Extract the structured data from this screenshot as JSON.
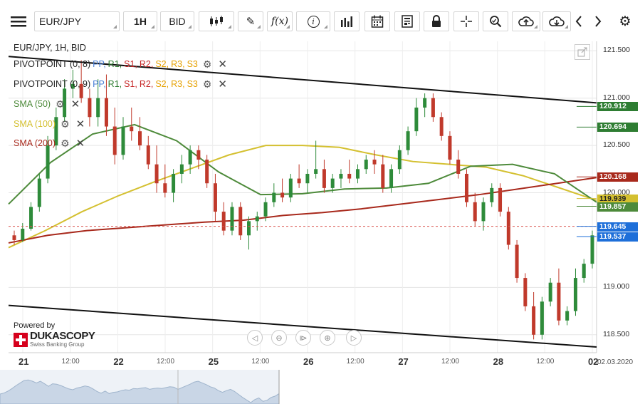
{
  "toolbar": {
    "symbol": "EUR/JPY",
    "timeframe": "1H",
    "price_type": "BID",
    "fx_label": "f(x)"
  },
  "chart_header": "EUR/JPY, 1H, BID",
  "indicators": {
    "pivot1_name": "PIVOTPOINT (0, 8)",
    "pivot2_name": "PIVOTPOINT (0, 9)",
    "levels": [
      "PP,",
      "R1,",
      "S1,",
      "R2,",
      "S2,",
      "R3,",
      "S3"
    ],
    "level_colors": [
      "#4a7fd6",
      "#2e7d32",
      "#c62828",
      "#c62828",
      "#e6a100",
      "#e6a100",
      "#e6a100"
    ],
    "sma50": "SMA (50)",
    "sma100": "SMA (100)",
    "sma200": "SMA (200)",
    "sma50_color": "#4d8a3a",
    "sma100_color": "#d4c030",
    "sma200_color": "#a8291c"
  },
  "branding": {
    "powered_by": "Powered by",
    "name": "DUKASCOPY",
    "tagline": "Swiss Banking Group"
  },
  "footer_date": "02.03.2020",
  "chart_data": {
    "type": "candlestick",
    "title": "EUR/JPY, 1H, BID",
    "ylim": [
      118.31,
      121.6
    ],
    "y_ticks": [
      "121.500",
      "121.000",
      "120.500",
      "120.000",
      "119.000",
      "118.500"
    ],
    "x_labels": [
      "21",
      "12:00",
      "22",
      "12:00",
      "25",
      "12:00",
      "26",
      "12:00",
      "27",
      "12:00",
      "28",
      "12:00",
      "02"
    ],
    "price_labels": [
      {
        "value": "120.912",
        "color": "#2e7d32"
      },
      {
        "value": "120.694",
        "color": "#2e7d32"
      },
      {
        "value": "120.168",
        "color": "#a8291c"
      },
      {
        "value": "119.939",
        "color": "#d4c030"
      },
      {
        "value": "119.857",
        "color": "#4d8a3a"
      },
      {
        "value": "119.645",
        "color": "#1e6fd9"
      },
      {
        "value": "119.537",
        "color": "#1e6fd9"
      }
    ],
    "channel_upper": [
      [
        0,
        121.44
      ],
      [
        1,
        120.95
      ]
    ],
    "channel_lower": [
      [
        0,
        118.81
      ],
      [
        1,
        118.37
      ]
    ],
    "sma200": [
      119.47,
      119.55,
      119.6,
      119.63,
      119.66,
      119.69,
      119.71,
      119.76,
      119.79,
      119.83,
      119.88,
      119.93,
      119.98,
      120.04,
      120.1,
      120.16
    ],
    "sma100": [
      119.42,
      119.6,
      119.8,
      119.97,
      120.12,
      120.26,
      120.4,
      120.5,
      120.5,
      120.48,
      120.4,
      120.33,
      120.3,
      120.27,
      120.18,
      120.05,
      119.92
    ],
    "sma50": [
      119.88,
      120.32,
      120.62,
      120.72,
      120.55,
      120.22,
      119.98,
      119.99,
      120.04,
      120.05,
      120.1,
      120.28,
      120.3,
      120.2,
      119.9
    ],
    "candles": [
      [
        119.55,
        119.6,
        119.45,
        119.5
      ],
      [
        119.5,
        119.68,
        119.48,
        119.62
      ],
      [
        119.62,
        119.9,
        119.6,
        119.85
      ],
      [
        119.85,
        120.2,
        119.8,
        120.15
      ],
      [
        120.15,
        120.6,
        120.1,
        120.5
      ],
      [
        120.5,
        120.9,
        120.45,
        120.8
      ],
      [
        120.8,
        121.2,
        120.75,
        121.1
      ],
      [
        121.1,
        121.3,
        121.0,
        121.15
      ],
      [
        121.15,
        121.4,
        120.95,
        121.0
      ],
      [
        121.0,
        121.1,
        120.7,
        120.8
      ],
      [
        120.8,
        121.2,
        120.7,
        121.0
      ],
      [
        121.0,
        121.25,
        120.6,
        120.7
      ],
      [
        120.7,
        120.9,
        120.3,
        120.4
      ],
      [
        120.4,
        120.8,
        120.35,
        120.7
      ],
      [
        120.7,
        120.9,
        120.55,
        120.65
      ],
      [
        120.65,
        120.8,
        120.45,
        120.5
      ],
      [
        120.5,
        120.6,
        120.25,
        120.3
      ],
      [
        120.3,
        120.5,
        120.0,
        120.1
      ],
      [
        120.1,
        120.3,
        119.95,
        120.0
      ],
      [
        120.0,
        120.25,
        119.9,
        120.2
      ],
      [
        120.2,
        120.4,
        120.1,
        120.3
      ],
      [
        120.3,
        120.5,
        120.2,
        120.45
      ],
      [
        120.45,
        120.5,
        120.25,
        120.35
      ],
      [
        120.35,
        120.4,
        120.05,
        120.1
      ],
      [
        120.1,
        120.2,
        119.7,
        119.8
      ],
      [
        119.8,
        119.9,
        119.55,
        119.6
      ],
      [
        119.6,
        119.9,
        119.55,
        119.85
      ],
      [
        119.85,
        119.9,
        119.5,
        119.55
      ],
      [
        119.55,
        119.75,
        119.4,
        119.7
      ],
      [
        119.7,
        119.8,
        119.6,
        119.75
      ],
      [
        119.75,
        119.95,
        119.7,
        119.9
      ],
      [
        119.9,
        120.1,
        119.85,
        120.0
      ],
      [
        120.0,
        120.15,
        119.9,
        119.95
      ],
      [
        119.95,
        120.2,
        119.9,
        120.15
      ],
      [
        120.15,
        120.3,
        120.05,
        120.1
      ],
      [
        120.1,
        120.25,
        120.0,
        120.2
      ],
      [
        120.2,
        120.55,
        120.15,
        120.25
      ],
      [
        120.25,
        120.35,
        120.0,
        120.05
      ],
      [
        120.05,
        120.2,
        120.0,
        120.15
      ],
      [
        120.15,
        120.25,
        120.05,
        120.2
      ],
      [
        120.2,
        120.35,
        120.1,
        120.15
      ],
      [
        120.15,
        120.3,
        120.1,
        120.25
      ],
      [
        120.25,
        120.4,
        120.2,
        120.35
      ],
      [
        120.35,
        120.45,
        120.2,
        120.3
      ],
      [
        120.3,
        120.4,
        120.0,
        120.05
      ],
      [
        120.05,
        120.3,
        120.0,
        120.25
      ],
      [
        120.25,
        120.5,
        120.2,
        120.45
      ],
      [
        120.45,
        120.7,
        120.4,
        120.65
      ],
      [
        120.65,
        121.0,
        120.6,
        120.9
      ],
      [
        120.9,
        121.05,
        120.8,
        121.0
      ],
      [
        121.0,
        121.05,
        120.75,
        120.8
      ],
      [
        120.8,
        120.85,
        120.55,
        120.6
      ],
      [
        120.6,
        120.65,
        120.3,
        120.35
      ],
      [
        120.35,
        120.45,
        120.15,
        120.2
      ],
      [
        120.2,
        120.25,
        119.85,
        119.9
      ],
      [
        119.9,
        120.0,
        119.65,
        119.7
      ],
      [
        119.7,
        119.95,
        119.6,
        119.9
      ],
      [
        119.9,
        120.1,
        119.85,
        120.05
      ],
      [
        120.05,
        120.1,
        119.75,
        119.8
      ],
      [
        119.8,
        119.85,
        119.4,
        119.45
      ],
      [
        119.45,
        119.5,
        119.05,
        119.1
      ],
      [
        119.1,
        119.15,
        118.75,
        118.8
      ],
      [
        118.8,
        118.95,
        118.45,
        118.5
      ],
      [
        118.5,
        118.9,
        118.45,
        118.85
      ],
      [
        118.85,
        119.1,
        118.8,
        119.05
      ],
      [
        119.05,
        119.2,
        118.6,
        118.65
      ],
      [
        118.65,
        118.8,
        118.6,
        118.75
      ],
      [
        118.75,
        119.2,
        118.7,
        119.1
      ],
      [
        119.1,
        119.3,
        119.05,
        119.25
      ],
      [
        119.25,
        119.6,
        119.2,
        119.55
      ]
    ]
  }
}
